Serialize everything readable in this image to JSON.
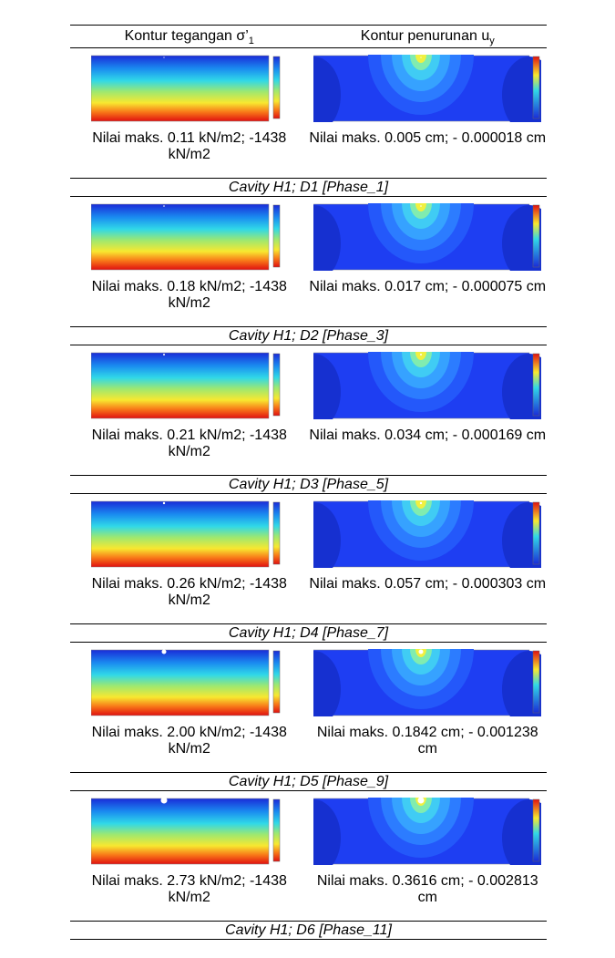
{
  "header": [
    {
      "text": "Kontur tegangan σ’",
      "sub": "1"
    },
    {
      "text": "Kontur penurunan u",
      "sub": "y"
    }
  ],
  "rows": [
    {
      "left": "Nilai maks. 0.11 kN/m2; -1438 kN/m2",
      "right": "Nilai maks. 0.005 cm; - 0.000018 cm",
      "caption": "Cavity H1; D1 [Phase_1]"
    },
    {
      "left": "Nilai maks. 0.18 kN/m2; -1438 kN/m2",
      "right": "Nilai maks. 0.017 cm; - 0.000075 cm",
      "caption": "Cavity H1; D2 [Phase_3]"
    },
    {
      "left": "Nilai maks. 0.21 kN/m2; -1438 kN/m2",
      "right": "Nilai maks. 0.034 cm; - 0.000169 cm",
      "caption": "Cavity H1; D3 [Phase_5]"
    },
    {
      "left": "Nilai maks. 0.26 kN/m2; -1438 kN/m2",
      "right": "Nilai maks. 0.057 cm; - 0.000303 cm",
      "caption": "Cavity H1; D4 [Phase_7]"
    },
    {
      "left": "Nilai maks. 2.00 kN/m2; -1438 kN/m2",
      "right": "Nilai maks. 0.1842 cm; - 0.001238 cm",
      "caption": "Cavity H1; D5 [Phase_9]"
    },
    {
      "left": "Nilai maks. 2.73 kN/m2; -1438 kN/m2",
      "right": "Nilai maks. 0.3616 cm; - 0.002813 cm",
      "caption": "Cavity H1; D6 [Phase_11]"
    }
  ]
}
